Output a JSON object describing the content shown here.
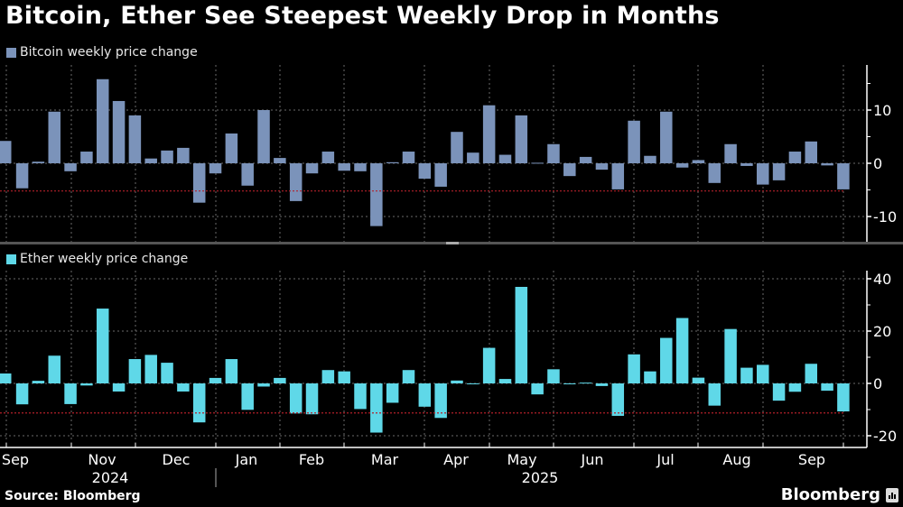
{
  "title": "Bitcoin, Ether See Steepest Weekly Drop in Months",
  "footer": {
    "source": "Source: Bloomberg",
    "brand": "Bloomberg",
    "brand_icon": "bloomberg-chart-icon"
  },
  "colors": {
    "bitcoin": "#7b93ba",
    "ether": "#5fd8e8",
    "reference_line": "#b3202a",
    "grid": "#6a6a6a",
    "axis": "#ffffff"
  },
  "chart_data": [
    {
      "type": "bar",
      "title": "Bitcoin weekly price change",
      "legend": "Bitcoin weekly price change",
      "legend_position": "top-left",
      "ylabel": "",
      "ylim": [
        -14.5,
        18
      ],
      "yticks": [
        10,
        0,
        -10
      ],
      "yticks_minor": [
        15,
        5,
        -5
      ],
      "grid": true,
      "reference_line": -5.2,
      "values": [
        4.2,
        -4.7,
        0.3,
        9.7,
        -1.5,
        2.2,
        15.8,
        11.7,
        9.0,
        0.9,
        2.4,
        2.9,
        -7.4,
        -1.9,
        5.6,
        -4.2,
        10.0,
        1.0,
        -7.1,
        -1.9,
        2.2,
        -1.4,
        -1.5,
        -11.8,
        0.2,
        2.2,
        -2.9,
        -4.4,
        5.9,
        2.0,
        10.9,
        1.6,
        9.0,
        0.1,
        3.6,
        -2.4,
        1.2,
        -1.2,
        -4.9,
        8.0,
        1.4,
        9.7,
        -0.8,
        0.6,
        -3.7,
        3.6,
        -0.5,
        -4.0,
        -3.2,
        2.2,
        4.1,
        -0.4,
        -4.9
      ]
    },
    {
      "type": "bar",
      "title": "Ether weekly price change",
      "legend": "Ether weekly price change",
      "legend_position": "top-left",
      "ylabel": "",
      "ylim": [
        -24,
        45
      ],
      "yticks": [
        40,
        20,
        0,
        -20
      ],
      "yticks_minor": [
        30,
        10,
        -10
      ],
      "grid": true,
      "reference_line": -11.3,
      "values": [
        3.8,
        -8.0,
        1.0,
        10.6,
        -7.9,
        -0.8,
        28.6,
        -3.1,
        9.3,
        10.9,
        7.9,
        -3.1,
        -14.9,
        2.1,
        9.3,
        -10.1,
        -1.2,
        2.1,
        -11.5,
        -11.8,
        5.1,
        4.6,
        -9.8,
        -18.8,
        -7.4,
        5.1,
        -8.9,
        -13.2,
        1.1,
        -0.2,
        13.6,
        1.7,
        36.9,
        -4.2,
        5.4,
        -0.2,
        0.3,
        -1.0,
        -12.4,
        11.1,
        4.6,
        17.4,
        25.0,
        2.2,
        -8.5,
        20.8,
        6.0,
        7.1,
        -6.6,
        -3.2,
        7.5,
        -2.8,
        -10.7
      ]
    }
  ],
  "x_axis": {
    "month_labels": [
      "Sep",
      "Nov",
      "Dec",
      "Jan",
      "Feb",
      "Mar",
      "Apr",
      "May",
      "Jun",
      "Jul",
      "Aug",
      "Sep"
    ],
    "year_labels": [
      "2024",
      "2025"
    ]
  }
}
